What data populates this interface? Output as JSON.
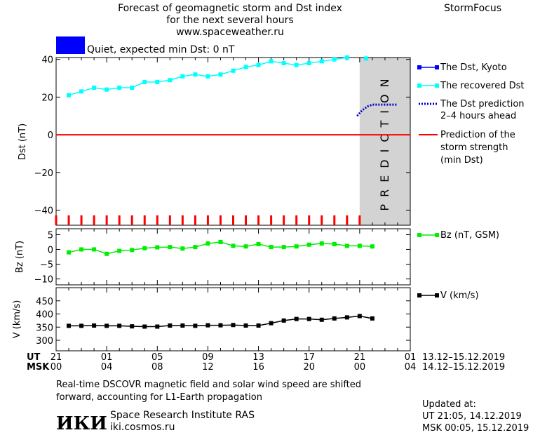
{
  "header": {
    "title_lines": [
      "Forecast of geomagnetic storm and Dst index",
      "for the next several hours",
      "www.spaceweather.ru"
    ],
    "brand": "StormFocus",
    "status_text": "Quiet, expected min Dst: 0 nT",
    "status_color": "#0000ff"
  },
  "prediction_label": "PREDICTION",
  "legend": {
    "dst_kyoto": "The Dst, Kyoto",
    "dst_recovered": "The recovered Dst",
    "dst_prediction": [
      "The Dst prediction",
      "2–4 hours ahead"
    ],
    "storm_strength": [
      "Prediction of the",
      "storm strength",
      "(min Dst)"
    ],
    "bz": "Bz (nT, GSM)",
    "v": "V (km/s)"
  },
  "time_axis": {
    "ut_label": "UT",
    "msk_label": "MSK",
    "ut_ticks": [
      "21",
      "01",
      "05",
      "09",
      "13",
      "17",
      "21",
      "01"
    ],
    "msk_ticks": [
      "00",
      "04",
      "08",
      "12",
      "16",
      "20",
      "00",
      "04"
    ],
    "ut_range": "13.12–15.12.2019",
    "msk_range": "14.12–15.12.2019"
  },
  "footer": {
    "note_lines": [
      "Real-time DSCOVR magnetic field and solar wind speed are shifted",
      "forward, accounting for L1-Earth propagation"
    ],
    "logo": "ИКИ",
    "institute": "Space Research Institute RAS",
    "site": "iki.cosmos.ru",
    "updated_label": "Updated at:",
    "updated_ut": "UT   21:05, 14.12.2019",
    "updated_msk": "MSK 00:05, 15.12.2019"
  },
  "chart_data": [
    {
      "type": "line",
      "ylabel": "Dst (nT)",
      "ylim": [
        -48,
        41
      ],
      "yticks": [
        40,
        20,
        0,
        -20,
        -40
      ],
      "xlim": [
        0,
        28
      ],
      "prediction_start_x": 24,
      "series": [
        {
          "name": "The recovered Dst",
          "color": "#00ffff",
          "x": [
            1,
            2,
            3,
            4,
            5,
            6,
            7,
            8,
            9,
            10,
            11,
            12,
            13,
            14,
            15,
            16,
            17,
            18,
            19,
            20,
            21,
            22,
            23
          ],
          "values": [
            21,
            23,
            25,
            24,
            25,
            25,
            28,
            28,
            29,
            31,
            32,
            31,
            32,
            34,
            36,
            37,
            39,
            38,
            37,
            38,
            39,
            40,
            41
          ]
        },
        {
          "name": "The Dst prediction 2–4 hours ahead",
          "color": "#0000cc",
          "x": [
            23.8,
            24.2,
            24.6,
            25,
            25.5,
            26,
            26.5,
            27
          ],
          "values": [
            10,
            13,
            15,
            16,
            16,
            16,
            16,
            16
          ]
        },
        {
          "name": "Prediction of the storm strength (min Dst)",
          "color": "#ff0000",
          "x": [
            0,
            28
          ],
          "values": [
            0,
            0
          ]
        }
      ],
      "extra_points": [
        {
          "x": 24.5,
          "y": 40.5,
          "color": "#00ffff"
        }
      ],
      "ticks_red_x": [
        0,
        1,
        2,
        3,
        4,
        5,
        6,
        7,
        8,
        9,
        10,
        11,
        12,
        13,
        14,
        15,
        16,
        17,
        18,
        19,
        20,
        21,
        22,
        23,
        24
      ]
    },
    {
      "type": "line",
      "ylabel": "Bz (nT)",
      "ylim": [
        -12,
        7
      ],
      "yticks": [
        5,
        0,
        -5,
        -10
      ],
      "xlim": [
        0,
        28
      ],
      "series": [
        {
          "name": "Bz (nT, GSM)",
          "color": "#00ee00",
          "x": [
            1,
            2,
            3,
            4,
            5,
            6,
            7,
            8,
            9,
            10,
            11,
            12,
            13,
            14,
            15,
            16,
            17,
            18,
            19,
            20,
            21,
            22,
            23,
            24,
            25
          ],
          "values": [
            -1,
            0,
            0,
            -1.5,
            -0.5,
            -0.2,
            0.4,
            0.7,
            0.8,
            0.3,
            0.8,
            2,
            2.5,
            1.2,
            1,
            1.8,
            0.8,
            0.8,
            1,
            1.6,
            2,
            1.8,
            1.2,
            1.2,
            1
          ]
        }
      ]
    },
    {
      "type": "line",
      "ylabel": "V (km/s)",
      "ylim": [
        260,
        500
      ],
      "yticks": [
        450,
        400,
        350,
        300
      ],
      "xlim": [
        0,
        28
      ],
      "series": [
        {
          "name": "V (km/s)",
          "color": "#000000",
          "x": [
            1,
            2,
            3,
            4,
            5,
            6,
            7,
            8,
            9,
            10,
            11,
            12,
            13,
            14,
            15,
            16,
            17,
            18,
            19,
            20,
            21,
            22,
            23,
            24,
            25
          ],
          "values": [
            355,
            355,
            356,
            355,
            355,
            353,
            352,
            352,
            356,
            356,
            355,
            357,
            357,
            358,
            356,
            356,
            365,
            375,
            381,
            381,
            378,
            383,
            387,
            392,
            383
          ]
        }
      ]
    }
  ]
}
